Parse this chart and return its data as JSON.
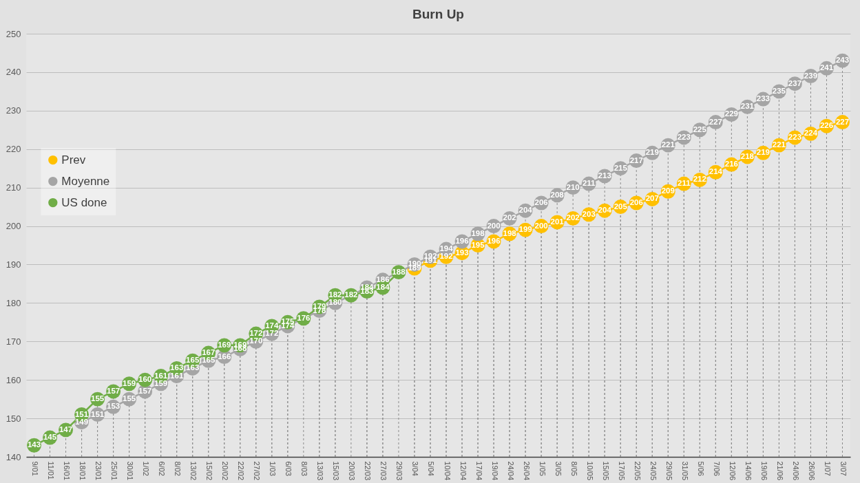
{
  "chart_data": {
    "type": "line",
    "title": "Burn Up",
    "categories": [
      "9/01",
      "11/01",
      "16/01",
      "18/01",
      "23/01",
      "25/01",
      "30/01",
      "1/02",
      "6/02",
      "8/02",
      "13/02",
      "15/02",
      "20/02",
      "22/02",
      "27/02",
      "1/03",
      "6/03",
      "8/03",
      "13/03",
      "15/03",
      "20/03",
      "22/03",
      "27/03",
      "29/03",
      "3/04",
      "5/04",
      "10/04",
      "12/04",
      "17/04",
      "19/04",
      "24/04",
      "26/04",
      "1/05",
      "3/05",
      "8/05",
      "10/05",
      "15/05",
      "17/05",
      "22/05",
      "24/05",
      "29/05",
      "31/05",
      "5/06",
      "7/06",
      "12/06",
      "14/06",
      "19/06",
      "21/06",
      "24/06",
      "26/06",
      "1/07",
      "3/07"
    ],
    "series": [
      {
        "name": "Prev",
        "color": "#ffc000",
        "values": [
          null,
          null,
          null,
          null,
          null,
          null,
          null,
          null,
          null,
          null,
          null,
          null,
          null,
          null,
          null,
          null,
          null,
          null,
          null,
          null,
          null,
          null,
          null,
          null,
          189,
          191,
          192,
          193,
          195,
          196,
          198,
          199,
          200,
          201,
          202,
          203,
          204,
          205,
          206,
          207,
          209,
          211,
          212,
          214,
          216,
          218,
          219,
          221,
          223,
          224,
          226,
          227
        ]
      },
      {
        "name": "Moyenne",
        "color": "#a5a5a5",
        "values": [
          null,
          null,
          null,
          149,
          151,
          153,
          155,
          157,
          159,
          161,
          163,
          165,
          166,
          168,
          170,
          172,
          174,
          null,
          178,
          180,
          null,
          184,
          186,
          null,
          190,
          192,
          194,
          196,
          198,
          200,
          202,
          204,
          206,
          208,
          210,
          211,
          213,
          215,
          217,
          219,
          221,
          223,
          225,
          227,
          229,
          231,
          233,
          235,
          237,
          239,
          241,
          243
        ]
      },
      {
        "name": "US done",
        "color": "#70ad47",
        "values": [
          143,
          145,
          147,
          151,
          155,
          157,
          159,
          160,
          161,
          163,
          165,
          167,
          169,
          169,
          172,
          174,
          175,
          176,
          179,
          182,
          182,
          183,
          184,
          188,
          null,
          null,
          null,
          null,
          null,
          null,
          null,
          null,
          null,
          null,
          null,
          null,
          null,
          null,
          null,
          null,
          null,
          null,
          null,
          null,
          null,
          null,
          null,
          null,
          null,
          null,
          null,
          null
        ]
      }
    ],
    "ylim": [
      140,
      250
    ],
    "yticks": [
      140,
      150,
      160,
      170,
      180,
      190,
      200,
      210,
      220,
      230,
      240,
      250
    ],
    "grid": true,
    "legend": "left",
    "marker": "circle",
    "line_style": "solid",
    "data_labels": true
  }
}
